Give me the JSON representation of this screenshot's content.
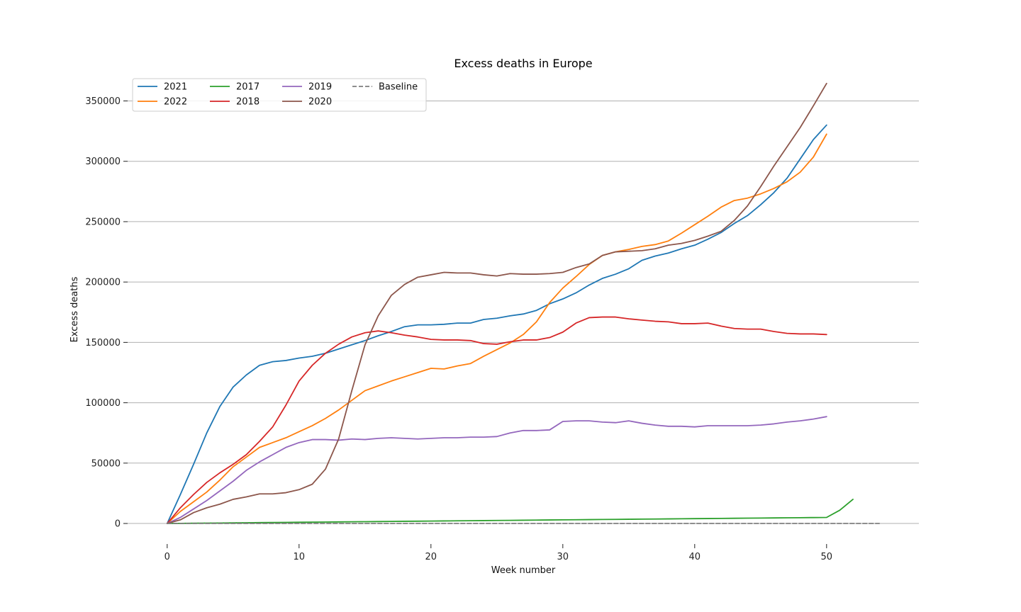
{
  "chart_data": {
    "type": "line",
    "title": "Excess deaths in Europe",
    "xlabel": "Week number",
    "ylabel": "Excess deaths",
    "xlim": [
      -3,
      57
    ],
    "ylim": [
      -17000,
      372000
    ],
    "xticks": [
      0,
      10,
      20,
      30,
      40,
      50
    ],
    "yticks": [
      0,
      50000,
      100000,
      150000,
      200000,
      250000,
      300000,
      350000
    ],
    "grid": "horizontal",
    "legend_position": "top-left",
    "series": [
      {
        "name": "2021",
        "color": "#1f77b4",
        "dash": "solid",
        "x_start": 0,
        "values": [
          0,
          24000,
          49000,
          75000,
          97000,
          113000,
          123000,
          131000,
          134000,
          135000,
          137000,
          138500,
          141000,
          144500,
          148000,
          151500,
          155500,
          159000,
          163000,
          164500,
          164500,
          165000,
          166000,
          166000,
          169000,
          170000,
          172000,
          173500,
          176500,
          182000,
          186000,
          191000,
          197500,
          203000,
          206500,
          211000,
          218000,
          221500,
          224000,
          227500,
          230500,
          235500,
          241000,
          248500,
          255000,
          264000,
          274000,
          286000,
          302000,
          318000,
          330000
        ]
      },
      {
        "name": "2022",
        "color": "#ff7f0e",
        "dash": "solid",
        "x_start": 0,
        "values": [
          0,
          10000,
          18000,
          26000,
          36000,
          47000,
          55000,
          63000,
          67000,
          71000,
          76000,
          81000,
          87000,
          94000,
          102000,
          110000,
          114000,
          118000,
          121500,
          125000,
          128500,
          128000,
          130500,
          132500,
          138500,
          144000,
          149500,
          156500,
          167000,
          183000,
          195000,
          204500,
          214500,
          222000,
          225000,
          227000,
          229500,
          231000,
          234000,
          240500,
          247500,
          254500,
          262000,
          267500,
          269500,
          273000,
          277500,
          283000,
          291000,
          303500,
          322500
        ]
      },
      {
        "name": "2017",
        "color": "#2ca02c",
        "dash": "solid",
        "x_start": 0,
        "values": [
          0,
          100,
          200,
          300,
          400,
          500,
          600,
          700,
          800,
          900,
          1000,
          1100,
          1200,
          1300,
          1400,
          1500,
          1600,
          1700,
          1800,
          1900,
          2000,
          2100,
          2200,
          2300,
          2400,
          2500,
          2600,
          2700,
          2800,
          2900,
          3000,
          3100,
          3200,
          3300,
          3400,
          3500,
          3600,
          3700,
          3800,
          3900,
          4000,
          4100,
          4200,
          4300,
          4400,
          4500,
          4600,
          4700,
          4800,
          4900,
          5000,
          11000,
          20000
        ]
      },
      {
        "name": "2018",
        "color": "#d62728",
        "dash": "solid",
        "x_start": 0,
        "values": [
          0,
          13000,
          24000,
          34000,
          42000,
          49000,
          57000,
          68000,
          80000,
          98000,
          118000,
          131000,
          141000,
          148500,
          154500,
          158000,
          159500,
          158000,
          156000,
          154500,
          152500,
          152000,
          152000,
          151500,
          149000,
          148500,
          150500,
          152000,
          152000,
          154000,
          158500,
          166000,
          170500,
          171000,
          171000,
          169500,
          168500,
          167500,
          167000,
          165500,
          165500,
          166000,
          163500,
          161500,
          161000,
          161000,
          159000,
          157500,
          157000,
          157000,
          156500
        ]
      },
      {
        "name": "2019",
        "color": "#9467bd",
        "dash": "solid",
        "x_start": 0,
        "values": [
          0,
          5000,
          12000,
          19000,
          27000,
          35000,
          44000,
          51000,
          57000,
          63000,
          67000,
          69500,
          69500,
          69000,
          70000,
          69500,
          70500,
          71000,
          70500,
          70000,
          70500,
          71000,
          71000,
          71500,
          71500,
          72000,
          75000,
          77000,
          77000,
          77500,
          84500,
          85000,
          85000,
          84000,
          83500,
          85000,
          83000,
          81500,
          80500,
          80500,
          80000,
          81000,
          81000,
          81000,
          81000,
          81500,
          82500,
          84000,
          85000,
          86500,
          88500
        ]
      },
      {
        "name": "2020",
        "color": "#8c564b",
        "dash": "solid",
        "x_start": 0,
        "values": [
          0,
          3000,
          9000,
          13000,
          16000,
          20000,
          22000,
          24500,
          24500,
          25500,
          28000,
          32500,
          45000,
          70000,
          110000,
          148000,
          172000,
          189000,
          198000,
          204000,
          206000,
          208000,
          207500,
          207500,
          206000,
          205000,
          207000,
          206500,
          206500,
          207000,
          208000,
          212000,
          215000,
          222000,
          225000,
          225500,
          226000,
          227500,
          230500,
          232000,
          234500,
          238000,
          242000,
          251000,
          263000,
          279000,
          296000,
          312000,
          328000,
          346000,
          364500
        ]
      },
      {
        "name": "Baseline",
        "color": "#7f7f7f",
        "dash": "dashed",
        "x_start": 0,
        "values": [
          0,
          0,
          0,
          0,
          0,
          0,
          0,
          0,
          0,
          0,
          0,
          0,
          0,
          0,
          0,
          0,
          0,
          0,
          0,
          0,
          0,
          0,
          0,
          0,
          0,
          0,
          0,
          0,
          0,
          0,
          0,
          0,
          0,
          0,
          0,
          0,
          0,
          0,
          0,
          0,
          0,
          0,
          0,
          0,
          0,
          0,
          0,
          0,
          0,
          0,
          0,
          0,
          0,
          0,
          0
        ]
      }
    ]
  }
}
